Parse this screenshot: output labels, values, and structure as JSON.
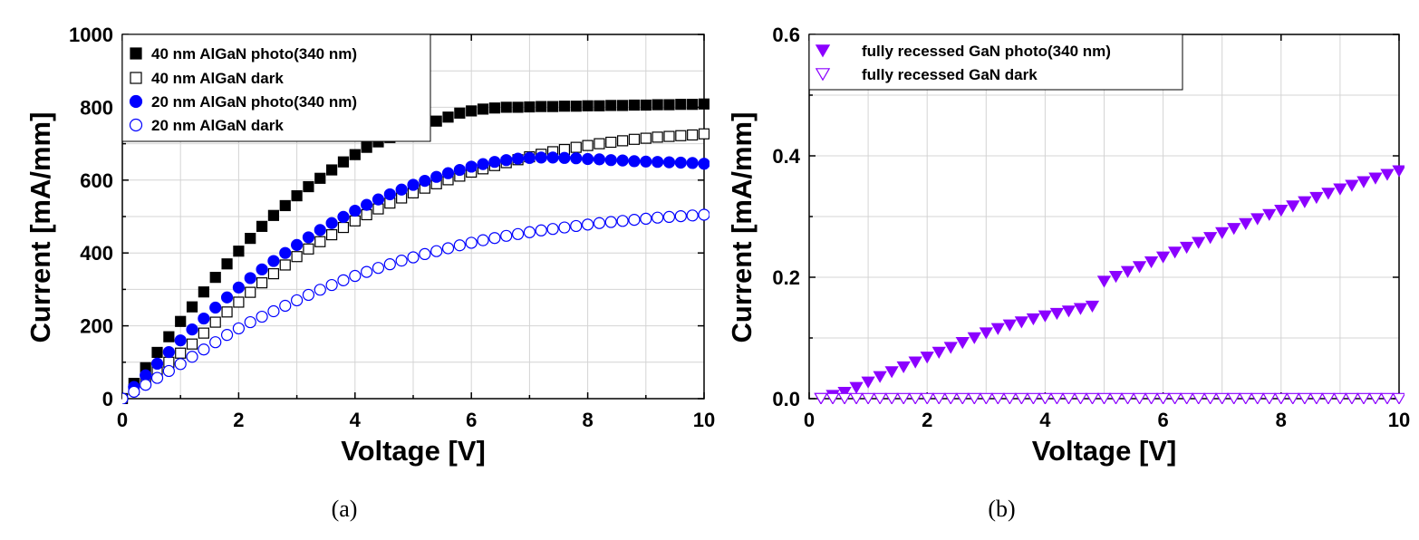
{
  "chart_data": [
    {
      "type": "scatter",
      "caption": "(a)",
      "xlabel": "Voltage [V]",
      "ylabel": "Current [mA/mm]",
      "xlim": [
        0,
        10
      ],
      "ylim": [
        0,
        1000
      ],
      "xticks": [
        "0",
        "2",
        "4",
        "6",
        "8",
        "10"
      ],
      "yticks": [
        "0",
        "200",
        "400",
        "600",
        "800",
        "1000"
      ],
      "grid": true,
      "legend_position": "top-left",
      "series": [
        {
          "name": "40 nm AlGaN photo(340 nm)",
          "marker": "square",
          "filled": true,
          "color": "#000000",
          "x": [
            0,
            0.2,
            0.4,
            0.6,
            0.8,
            1,
            1.2,
            1.4,
            1.6,
            1.8,
            2,
            2.2,
            2.4,
            2.6,
            2.8,
            3,
            3.2,
            3.4,
            3.6,
            3.8,
            4,
            4.2,
            4.4,
            4.6,
            4.8,
            5,
            5.2,
            5.4,
            5.6,
            5.8,
            6,
            6.2,
            6.4,
            6.6,
            6.8,
            7,
            7.2,
            7.4,
            7.6,
            7.8,
            8,
            8.2,
            8.4,
            8.6,
            8.8,
            9,
            9.2,
            9.4,
            9.6,
            9.8,
            10
          ],
          "y": [
            0,
            42,
            85,
            127,
            170,
            212,
            252,
            293,
            333,
            370,
            405,
            440,
            473,
            503,
            530,
            557,
            582,
            605,
            628,
            650,
            670,
            690,
            705,
            717,
            729,
            740,
            750,
            762,
            773,
            784,
            790,
            795,
            798,
            800,
            800,
            801,
            802,
            802,
            803,
            803,
            804,
            804,
            805,
            805,
            806,
            806,
            807,
            807,
            808,
            808,
            809
          ]
        },
        {
          "name": "40 nm AlGaN dark",
          "marker": "square",
          "filled": false,
          "color": "#000000",
          "x": [
            0,
            0.2,
            0.4,
            0.6,
            0.8,
            1,
            1.2,
            1.4,
            1.6,
            1.8,
            2,
            2.2,
            2.4,
            2.6,
            2.8,
            3,
            3.2,
            3.4,
            3.6,
            3.8,
            4,
            4.2,
            4.4,
            4.6,
            4.8,
            5,
            5.2,
            5.4,
            5.6,
            5.8,
            6,
            6.2,
            6.4,
            6.6,
            6.8,
            7,
            7.2,
            7.4,
            7.6,
            7.8,
            8,
            8.2,
            8.4,
            8.6,
            8.8,
            9,
            9.2,
            9.4,
            9.6,
            9.8,
            10
          ],
          "y": [
            0,
            25,
            50,
            75,
            100,
            125,
            150,
            180,
            210,
            238,
            265,
            292,
            318,
            343,
            367,
            390,
            411,
            431,
            450,
            470,
            488,
            505,
            521,
            537,
            551,
            565,
            578,
            590,
            601,
            611,
            622,
            631,
            640,
            648,
            656,
            664,
            671,
            678,
            684,
            690,
            695,
            700,
            704,
            708,
            712,
            715,
            718,
            720,
            722,
            724,
            727
          ]
        },
        {
          "name": "20 nm AlGaN photo(340 nm)",
          "marker": "circle",
          "filled": true,
          "color": "#0000ff",
          "x": [
            0,
            0.2,
            0.4,
            0.6,
            0.8,
            1,
            1.2,
            1.4,
            1.6,
            1.8,
            2,
            2.2,
            2.4,
            2.6,
            2.8,
            3,
            3.2,
            3.4,
            3.6,
            3.8,
            4,
            4.2,
            4.4,
            4.6,
            4.8,
            5,
            5.2,
            5.4,
            5.6,
            5.8,
            6,
            6.2,
            6.4,
            6.6,
            6.8,
            7,
            7.2,
            7.4,
            7.6,
            7.8,
            8,
            8.2,
            8.4,
            8.6,
            8.8,
            9,
            9.2,
            9.4,
            9.6,
            9.8,
            10
          ],
          "y": [
            0,
            32,
            64,
            96,
            128,
            160,
            190,
            220,
            250,
            278,
            305,
            331,
            355,
            378,
            400,
            422,
            443,
            463,
            482,
            499,
            516,
            532,
            547,
            561,
            574,
            587,
            598,
            609,
            619,
            628,
            637,
            644,
            650,
            655,
            659,
            661,
            662,
            662,
            661,
            660,
            658,
            657,
            655,
            654,
            652,
            651,
            650,
            649,
            648,
            647,
            645
          ]
        },
        {
          "name": "20 nm AlGaN dark",
          "marker": "circle",
          "filled": false,
          "color": "#0000ff",
          "x": [
            0,
            0.2,
            0.4,
            0.6,
            0.8,
            1,
            1.2,
            1.4,
            1.6,
            1.8,
            2,
            2.2,
            2.4,
            2.6,
            2.8,
            3,
            3.2,
            3.4,
            3.6,
            3.8,
            4,
            4.2,
            4.4,
            4.6,
            4.8,
            5,
            5.2,
            5.4,
            5.6,
            5.8,
            6,
            6.2,
            6.4,
            6.6,
            6.8,
            7,
            7.2,
            7.4,
            7.6,
            7.8,
            8,
            8.2,
            8.4,
            8.6,
            8.8,
            9,
            9.2,
            9.4,
            9.6,
            9.8,
            10
          ],
          "y": [
            0,
            19,
            38,
            57,
            76,
            95,
            115,
            135,
            155,
            175,
            193,
            210,
            225,
            240,
            255,
            270,
            285,
            299,
            312,
            325,
            337,
            348,
            359,
            369,
            379,
            388,
            397,
            405,
            413,
            421,
            428,
            435,
            441,
            447,
            452,
            457,
            462,
            466,
            470,
            474,
            478,
            482,
            485,
            488,
            491,
            494,
            497,
            499,
            501,
            503,
            505
          ]
        }
      ]
    },
    {
      "type": "scatter",
      "caption": "(b)",
      "xlabel": "Voltage [V]",
      "ylabel": "Current [mA/mm]",
      "xlim": [
        0,
        10
      ],
      "ylim": [
        0,
        0.6
      ],
      "xticks": [
        "0",
        "2",
        "4",
        "6",
        "8",
        "10"
      ],
      "yticks": [
        "0.0",
        "0.2",
        "0.4",
        "0.6"
      ],
      "grid": true,
      "legend_position": "top-left",
      "series": [
        {
          "name": "fully recessed GaN photo(340 nm)",
          "marker": "triangle-down",
          "filled": true,
          "color": "#8b00ff",
          "x": [
            0.2,
            0.4,
            0.6,
            0.8,
            1,
            1.2,
            1.4,
            1.6,
            1.8,
            2,
            2.2,
            2.4,
            2.6,
            2.8,
            3,
            3.2,
            3.4,
            3.6,
            3.8,
            4,
            4.2,
            4.4,
            4.6,
            4.8,
            5,
            5.2,
            5.4,
            5.6,
            5.8,
            6,
            6.2,
            6.4,
            6.6,
            6.8,
            7,
            7.2,
            7.4,
            7.6,
            7.8,
            8,
            8.2,
            8.4,
            8.6,
            8.8,
            9,
            9.2,
            9.4,
            9.6,
            9.8,
            10
          ],
          "y": [
            0,
            0.005,
            0.01,
            0.018,
            0.027,
            0.036,
            0.044,
            0.052,
            0.06,
            0.068,
            0.076,
            0.084,
            0.092,
            0.1,
            0.108,
            0.115,
            0.121,
            0.126,
            0.131,
            0.136,
            0.14,
            0.144,
            0.148,
            0.152,
            0.193,
            0.201,
            0.209,
            0.217,
            0.225,
            0.233,
            0.241,
            0.249,
            0.257,
            0.265,
            0.273,
            0.28,
            0.288,
            0.296,
            0.303,
            0.31,
            0.317,
            0.324,
            0.331,
            0.338,
            0.345,
            0.351,
            0.357,
            0.363,
            0.369,
            0.375
          ]
        },
        {
          "name": "fully recessed GaN dark",
          "marker": "triangle-down",
          "filled": false,
          "color": "#8b00ff",
          "x": [
            0.2,
            0.4,
            0.6,
            0.8,
            1,
            1.2,
            1.4,
            1.6,
            1.8,
            2,
            2.2,
            2.4,
            2.6,
            2.8,
            3,
            3.2,
            3.4,
            3.6,
            3.8,
            4,
            4.2,
            4.4,
            4.6,
            4.8,
            5,
            5.2,
            5.4,
            5.6,
            5.8,
            6,
            6.2,
            6.4,
            6.6,
            6.8,
            7,
            7.2,
            7.4,
            7.6,
            7.8,
            8,
            8.2,
            8.4,
            8.6,
            8.8,
            9,
            9.2,
            9.4,
            9.6,
            9.8,
            10
          ],
          "y": [
            0,
            0,
            0,
            0,
            0,
            0,
            0,
            0,
            0,
            0,
            0,
            0,
            0,
            0,
            0,
            0,
            0,
            0,
            0,
            0,
            0,
            0,
            0,
            0,
            0,
            0,
            0,
            0,
            0,
            0,
            0,
            0,
            0,
            0,
            0,
            0,
            0,
            0,
            0,
            0,
            0,
            0,
            0,
            0,
            0,
            0,
            0,
            0,
            0,
            0
          ]
        }
      ]
    }
  ]
}
